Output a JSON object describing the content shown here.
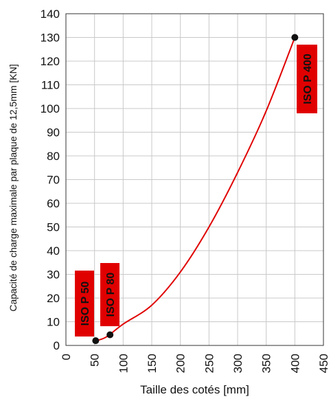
{
  "chart_data": {
    "type": "line",
    "xlabel": "Taille des cotés [mm]",
    "ylabel": "Capacité de charge maximale par plaque de 12,5mm [KN]",
    "xlim": [
      0,
      450
    ],
    "ylim": [
      0,
      140
    ],
    "x_ticks": [
      0,
      50,
      100,
      150,
      200,
      250,
      300,
      350,
      400,
      450
    ],
    "y_ticks": [
      0,
      10,
      20,
      30,
      40,
      50,
      60,
      70,
      80,
      90,
      100,
      110,
      120,
      130,
      140
    ],
    "grid": true,
    "series": [
      {
        "color": "#e00000",
        "x": [
          52,
          70,
          100,
          150,
          200,
          250,
          300,
          350,
          400
        ],
        "y": [
          2,
          3.5,
          9,
          17,
          31,
          50,
          73,
          99,
          130
        ]
      }
    ],
    "points": [
      {
        "label": "ISO P 50",
        "x": 52,
        "y": 2
      },
      {
        "label": "ISO P 80",
        "x": 77,
        "y": 4.5
      },
      {
        "label": "ISO P 400",
        "x": 400,
        "y": 130
      }
    ],
    "label_color": "#e00000"
  }
}
